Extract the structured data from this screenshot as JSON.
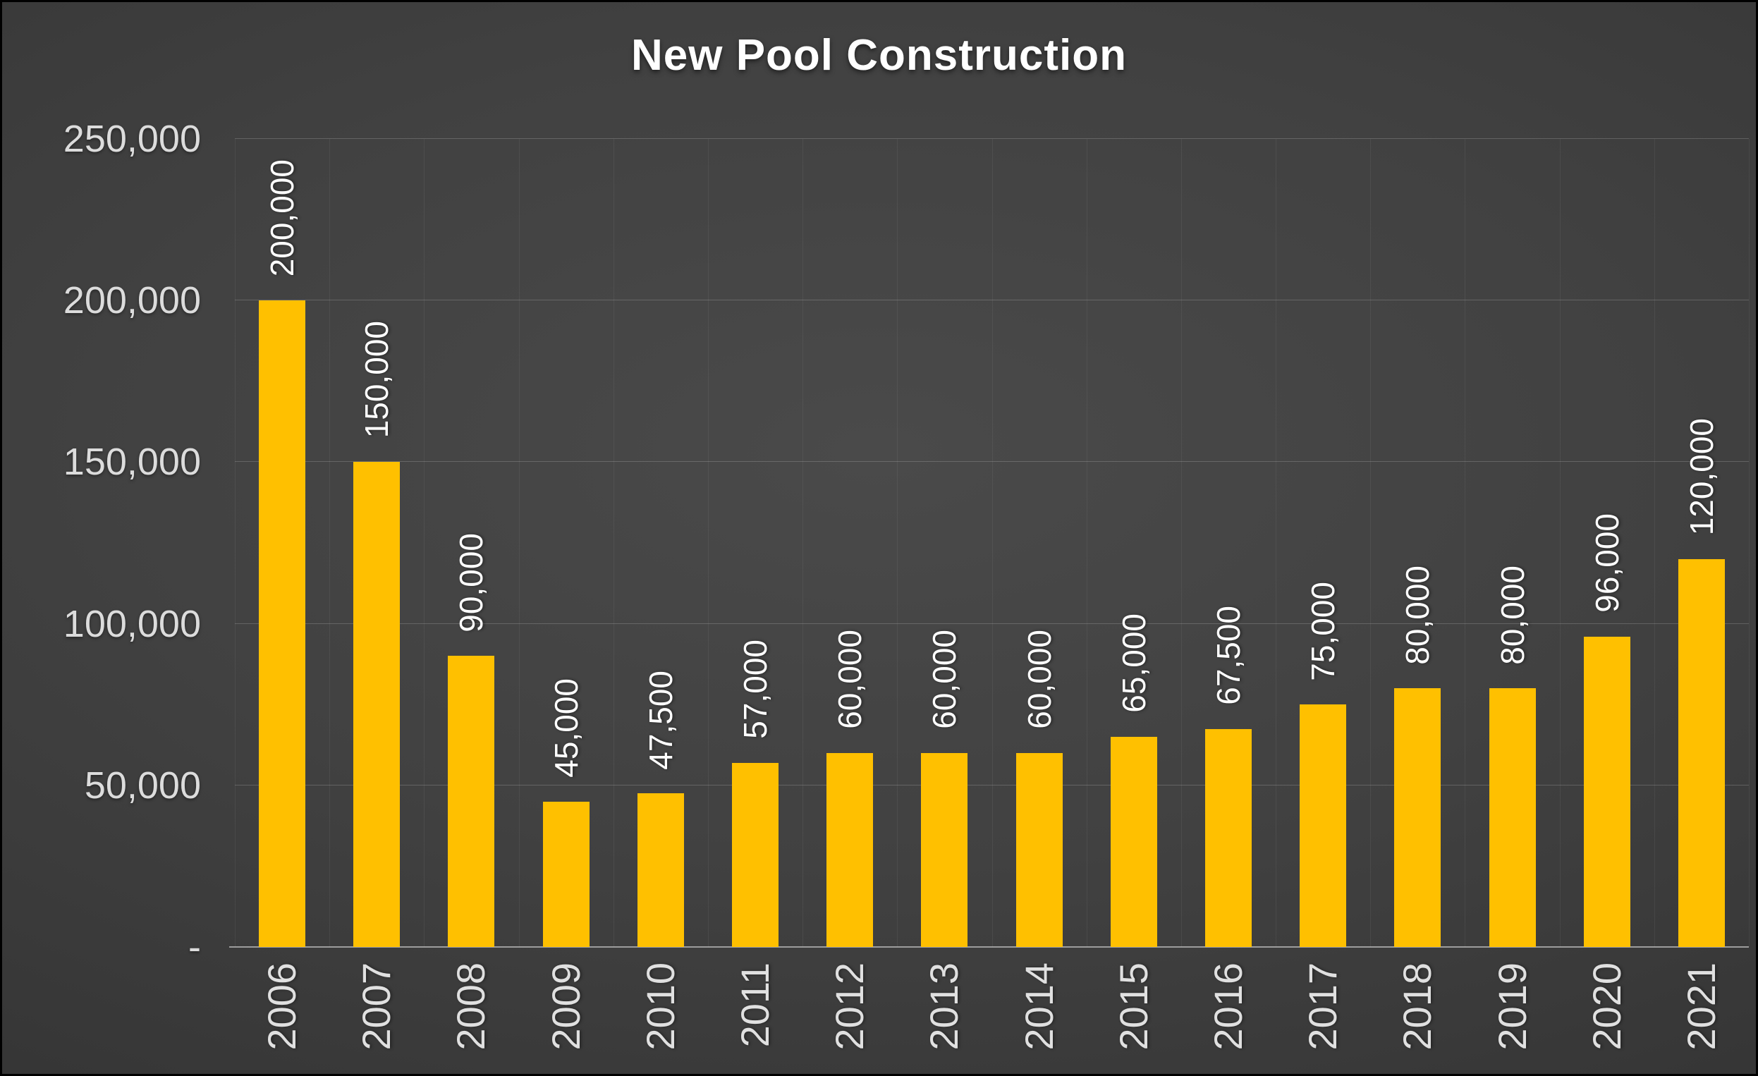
{
  "chart_data": {
    "type": "bar",
    "title": "New Pool Construction",
    "categories": [
      "2006",
      "2007",
      "2008",
      "2009",
      "2010",
      "2011",
      "2012",
      "2013",
      "2014",
      "2015",
      "2016",
      "2017",
      "2018",
      "2019",
      "2020",
      "2021"
    ],
    "values": [
      200000,
      150000,
      90000,
      45000,
      47500,
      57000,
      60000,
      60000,
      60000,
      65000,
      67500,
      75000,
      80000,
      80000,
      96000,
      120000
    ],
    "data_labels": [
      "200,000",
      "150,000",
      "90,000",
      "45,000",
      "47,500",
      "57,000",
      "60,000",
      "60,000",
      "60,000",
      "65,000",
      "67,500",
      "75,000",
      "80,000",
      "80,000",
      "96,000",
      "120,000"
    ],
    "xlabel": "",
    "ylabel": "",
    "ylim": [
      0,
      250000
    ],
    "y_ticks": [
      {
        "value": 0,
        "label": "-"
      },
      {
        "value": 50000,
        "label": "50,000"
      },
      {
        "value": 100000,
        "label": "100,000"
      },
      {
        "value": 150000,
        "label": "150,000"
      },
      {
        "value": 200000,
        "label": "200,000"
      },
      {
        "value": 250000,
        "label": "250,000"
      }
    ],
    "grid": true,
    "legend_position": "none",
    "bar_color": "#FFC000",
    "data_label_color": "#FFFFFF",
    "tick_color": "#DCDCDC",
    "background_center": "#4A4A4A",
    "background_edge": "#242424"
  }
}
